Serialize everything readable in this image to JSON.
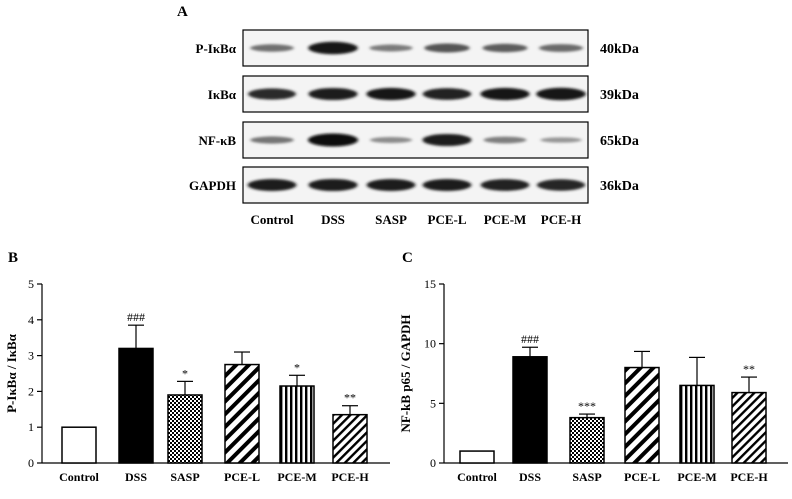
{
  "panel_labels": {
    "a": "A",
    "b": "B",
    "c": "C"
  },
  "blot": {
    "rows": [
      {
        "protein": "P-IκBα",
        "size": "40kDa",
        "intensities": [
          0.38,
          0.95,
          0.32,
          0.55,
          0.5,
          0.42
        ]
      },
      {
        "protein": "IκBα",
        "size": "39kDa",
        "intensities": [
          0.8,
          0.9,
          0.92,
          0.85,
          0.92,
          0.95
        ]
      },
      {
        "protein": "NF-κB",
        "size": "65kDa",
        "intensities": [
          0.35,
          1.0,
          0.22,
          0.9,
          0.3,
          0.15
        ]
      },
      {
        "protein": "GAPDH",
        "size": "36kDa",
        "intensities": [
          0.88,
          0.9,
          0.88,
          0.88,
          0.86,
          0.82
        ]
      }
    ],
    "lanes": [
      "Control",
      "DSS",
      "SASP",
      "PCE-L",
      "PCE-M",
      "PCE-H"
    ]
  },
  "chart_data": [
    {
      "type": "bar",
      "ylabel": "P-IκBα / IκBα",
      "categories": [
        "Control",
        "DSS",
        "SASP",
        "PCE-L",
        "PCE-M",
        "PCE-H"
      ],
      "values": [
        1.0,
        3.2,
        1.9,
        2.75,
        2.15,
        1.35
      ],
      "errors": [
        0.0,
        0.65,
        0.38,
        0.35,
        0.3,
        0.25
      ],
      "annotations": [
        "",
        "###",
        "*",
        "",
        "*",
        "**"
      ],
      "ylim": [
        0,
        5
      ],
      "yticks": [
        "0",
        "1",
        "2",
        "3",
        "4",
        "5"
      ],
      "fills": [
        "white",
        "black",
        "checker",
        "diag-wide",
        "vertical",
        "diag-narrow"
      ]
    },
    {
      "type": "bar",
      "ylabel": "NF-kB p65 / GAPDH",
      "categories": [
        "Control",
        "DSS",
        "SASP",
        "PCE-L",
        "PCE-M",
        "PCE-H"
      ],
      "values": [
        1.0,
        8.9,
        3.8,
        8.0,
        6.5,
        5.9
      ],
      "errors": [
        0.0,
        0.8,
        0.3,
        1.35,
        2.35,
        1.3
      ],
      "annotations": [
        "",
        "###",
        "***",
        "",
        "",
        "**"
      ],
      "ylim": [
        0,
        15
      ],
      "yticks": [
        "0",
        "5",
        "10",
        "15"
      ],
      "fills": [
        "white",
        "black",
        "checker",
        "diag-wide",
        "vertical",
        "diag-narrow"
      ]
    }
  ]
}
